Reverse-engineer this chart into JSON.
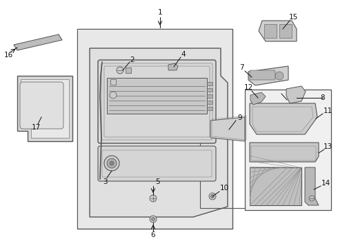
{
  "bg": "#ffffff",
  "lc": "#555555",
  "lc2": "#888888",
  "black": "#111111",
  "fill_door": "#e8e8e8",
  "fill_inner": "#dddddd",
  "fill_part": "#cccccc",
  "fill_dark": "#aaaaaa",
  "fill_box": "#ebebeb",
  "dot_fill": "#bbbbbb",
  "shadow": "#c0c0c0"
}
